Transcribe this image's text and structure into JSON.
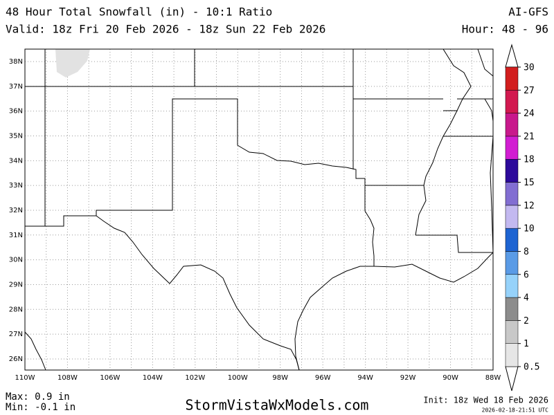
{
  "header": {
    "title": "48 Hour Total Snowfall (in) - 10:1 Ratio",
    "model": "AI-GFS",
    "valid": "Valid: 18z Fri 20 Feb 2026 - 18z Sun 22 Feb 2026",
    "hour": "Hour: 48 - 96"
  },
  "map": {
    "lat_labels": [
      "38N",
      "37N",
      "36N",
      "35N",
      "34N",
      "33N",
      "32N",
      "31N",
      "30N",
      "29N",
      "28N",
      "27N",
      "26N"
    ],
    "lon_labels": [
      "110W",
      "108W",
      "106W",
      "104W",
      "102W",
      "100W",
      "98W",
      "96W",
      "94W",
      "92W",
      "90W",
      "88W"
    ]
  },
  "colorbar": {
    "labels": [
      0.5,
      1,
      2,
      4,
      6,
      8,
      10,
      12,
      15,
      18,
      21,
      24,
      27,
      30
    ],
    "colors": [
      "#e6e6e6",
      "#c8c8c8",
      "#8c8c8c",
      "#96d2fa",
      "#5a9be6",
      "#1e64d2",
      "#c3b9f0",
      "#826ed2",
      "#2d0a9b",
      "#d21ed2",
      "#c8198c",
      "#d21950",
      "#d21e1e"
    ]
  },
  "footer": {
    "max": "Max: 0.9 in",
    "min": "Min: -0.1 in",
    "site": "StormVistaWxModels.com",
    "init": "Init: 18z Wed 18 Feb 2026",
    "stamp": "2026-02-18-21:51 UTC"
  }
}
